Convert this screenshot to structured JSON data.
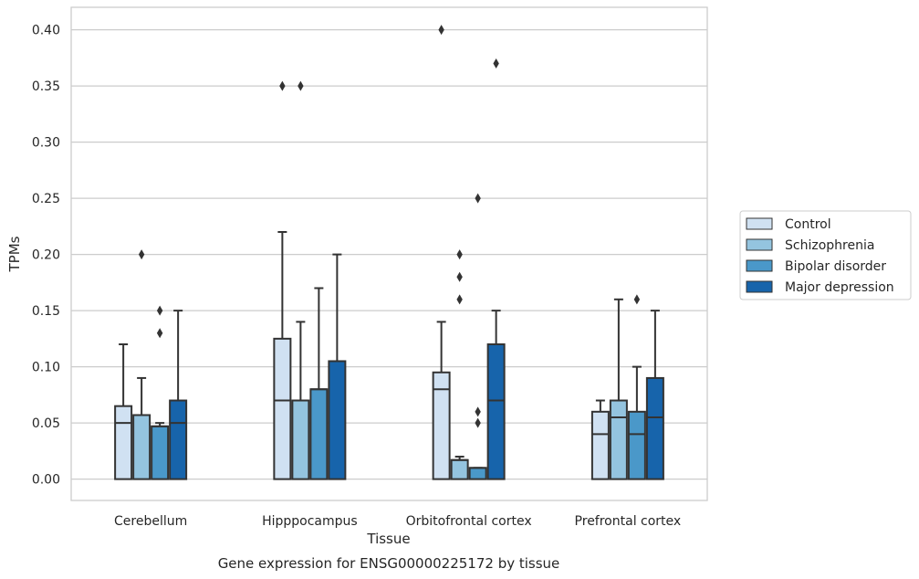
{
  "chart_data": {
    "type": "box",
    "title": "",
    "caption": "Gene expression for ENSG00000225172 by tissue",
    "xlabel": "Tissue",
    "ylabel": "TPMs",
    "ylim": [
      -0.019,
      0.42
    ],
    "yticks": [
      "0.00",
      "0.05",
      "0.10",
      "0.15",
      "0.20",
      "0.25",
      "0.30",
      "0.35",
      "0.40"
    ],
    "ytick_values": [
      0,
      0.05,
      0.1,
      0.15,
      0.2,
      0.25,
      0.3,
      0.35,
      0.4
    ],
    "grid": "horizontal",
    "legend_position": "right",
    "categories": [
      "Cerebellum",
      "Hipppocampus",
      "Orbitofrontal cortex",
      "Prefrontal cortex"
    ],
    "series": [
      {
        "name": "Control",
        "color": "#d0e1f2",
        "boxes": [
          {
            "min": 0,
            "q1": 0,
            "median": 0.05,
            "q3": 0.065,
            "max": 0.12,
            "outliers": []
          },
          {
            "min": 0,
            "q1": 0,
            "median": 0.07,
            "q3": 0.125,
            "max": 0.22,
            "outliers": [
              0.35
            ]
          },
          {
            "min": 0,
            "q1": 0,
            "median": 0.08,
            "q3": 0.095,
            "max": 0.14,
            "outliers": [
              0.4
            ]
          },
          {
            "min": 0,
            "q1": 0,
            "median": 0.04,
            "q3": 0.06,
            "max": 0.07,
            "outliers": []
          }
        ]
      },
      {
        "name": "Schizophrenia",
        "color": "#94c4df",
        "boxes": [
          {
            "min": 0,
            "q1": 0,
            "median": 0.057,
            "q3": 0.057,
            "max": 0.09,
            "outliers": [
              0.2
            ]
          },
          {
            "min": 0,
            "q1": 0,
            "median": 0.07,
            "q3": 0.07,
            "max": 0.14,
            "outliers": [
              0.35
            ]
          },
          {
            "min": 0,
            "q1": 0,
            "median": 0.017,
            "q3": 0.017,
            "max": 0.02,
            "outliers": [
              0.16,
              0.18,
              0.2
            ]
          },
          {
            "min": 0,
            "q1": 0,
            "median": 0.055,
            "q3": 0.07,
            "max": 0.16,
            "outliers": []
          }
        ]
      },
      {
        "name": "Bipolar disorder",
        "color": "#4a98c9",
        "boxes": [
          {
            "min": 0,
            "q1": 0,
            "median": 0.047,
            "q3": 0.047,
            "max": 0.05,
            "outliers": [
              0.13,
              0.15
            ]
          },
          {
            "min": 0,
            "q1": 0,
            "median": 0.08,
            "q3": 0.08,
            "max": 0.17,
            "outliers": []
          },
          {
            "min": 0,
            "q1": 0,
            "median": 0.01,
            "q3": 0.01,
            "max": 0.01,
            "outliers": [
              0.05,
              0.06,
              0.25
            ]
          },
          {
            "min": 0,
            "q1": 0,
            "median": 0.04,
            "q3": 0.06,
            "max": 0.1,
            "outliers": [
              0.16
            ]
          }
        ]
      },
      {
        "name": "Major depression",
        "color": "#1764ab",
        "boxes": [
          {
            "min": 0,
            "q1": 0,
            "median": 0.05,
            "q3": 0.07,
            "max": 0.15,
            "outliers": []
          },
          {
            "min": 0,
            "q1": 0,
            "median": 0.105,
            "q3": 0.105,
            "max": 0.2,
            "outliers": []
          },
          {
            "min": 0,
            "q1": 0,
            "median": 0.07,
            "q3": 0.12,
            "max": 0.15,
            "outliers": [
              0.37
            ]
          },
          {
            "min": 0,
            "q1": 0,
            "median": 0.055,
            "q3": 0.09,
            "max": 0.15,
            "outliers": []
          }
        ]
      }
    ],
    "colors": {
      "grid": "#cccccc",
      "edge": "#333333",
      "frame": "#cccccc",
      "text": "#262626"
    }
  }
}
